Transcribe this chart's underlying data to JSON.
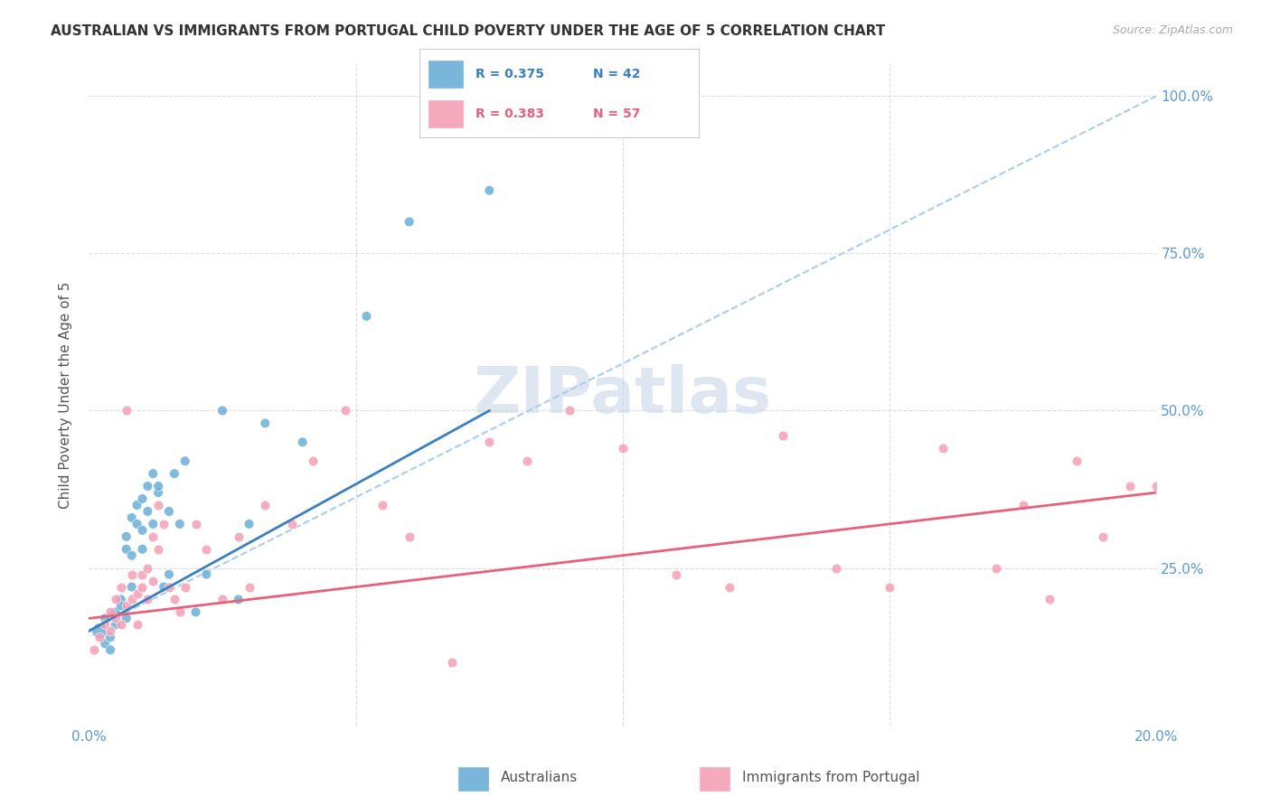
{
  "title": "AUSTRALIAN VS IMMIGRANTS FROM PORTUGAL CHILD POVERTY UNDER THE AGE OF 5 CORRELATION CHART",
  "source": "Source: ZipAtlas.com",
  "ylabel": "Child Poverty Under the Age of 5",
  "legend_r1": "R = 0.375",
  "legend_n1": "N = 42",
  "legend_r2": "R = 0.383",
  "legend_n2": "N = 57",
  "color_blue": "#6aaed6",
  "color_pink": "#f4a0b5",
  "color_blue_line": "#3a7fc1",
  "color_pink_line": "#e8607a",
  "color_dashed": "#aaccee",
  "axis_label_color": "#5b9bd5",
  "grid_color": "#dddddd",
  "watermark_color": "#c8d8e8",
  "australians_x": [
    0.002,
    0.003,
    0.003,
    0.004,
    0.004,
    0.005,
    0.005,
    0.006,
    0.006,
    0.007,
    0.007,
    0.007,
    0.008,
    0.008,
    0.008,
    0.009,
    0.009,
    0.01,
    0.01,
    0.01,
    0.011,
    0.011,
    0.012,
    0.012,
    0.013,
    0.013,
    0.014,
    0.015,
    0.015,
    0.016,
    0.017,
    0.018,
    0.02,
    0.022,
    0.025,
    0.028,
    0.03,
    0.033,
    0.04,
    0.052,
    0.06,
    0.075
  ],
  "australians_y": [
    0.15,
    0.13,
    0.17,
    0.14,
    0.12,
    0.18,
    0.16,
    0.2,
    0.19,
    0.17,
    0.28,
    0.3,
    0.22,
    0.33,
    0.27,
    0.35,
    0.32,
    0.31,
    0.36,
    0.28,
    0.34,
    0.38,
    0.32,
    0.4,
    0.37,
    0.38,
    0.22,
    0.24,
    0.34,
    0.4,
    0.32,
    0.42,
    0.18,
    0.24,
    0.5,
    0.2,
    0.32,
    0.48,
    0.45,
    0.65,
    0.8,
    0.85
  ],
  "australians_size": [
    150,
    60,
    60,
    60,
    60,
    60,
    60,
    60,
    60,
    60,
    60,
    60,
    60,
    60,
    60,
    60,
    60,
    60,
    60,
    60,
    60,
    60,
    60,
    60,
    60,
    60,
    60,
    60,
    60,
    60,
    60,
    60,
    60,
    60,
    60,
    60,
    60,
    60,
    60,
    60,
    60,
    60
  ],
  "portugal_x": [
    0.001,
    0.002,
    0.003,
    0.004,
    0.004,
    0.005,
    0.005,
    0.006,
    0.006,
    0.007,
    0.007,
    0.008,
    0.008,
    0.009,
    0.009,
    0.01,
    0.01,
    0.011,
    0.011,
    0.012,
    0.012,
    0.013,
    0.013,
    0.014,
    0.015,
    0.016,
    0.017,
    0.018,
    0.02,
    0.022,
    0.025,
    0.028,
    0.03,
    0.033,
    0.038,
    0.042,
    0.048,
    0.055,
    0.06,
    0.068,
    0.075,
    0.082,
    0.09,
    0.1,
    0.11,
    0.12,
    0.13,
    0.14,
    0.15,
    0.16,
    0.17,
    0.175,
    0.18,
    0.185,
    0.19,
    0.195,
    0.2
  ],
  "portugal_y": [
    0.12,
    0.14,
    0.16,
    0.18,
    0.15,
    0.2,
    0.17,
    0.22,
    0.16,
    0.19,
    0.5,
    0.24,
    0.2,
    0.21,
    0.16,
    0.24,
    0.22,
    0.2,
    0.25,
    0.23,
    0.3,
    0.28,
    0.35,
    0.32,
    0.22,
    0.2,
    0.18,
    0.22,
    0.32,
    0.28,
    0.2,
    0.3,
    0.22,
    0.35,
    0.32,
    0.42,
    0.5,
    0.35,
    0.3,
    0.1,
    0.45,
    0.42,
    0.5,
    0.44,
    0.24,
    0.22,
    0.46,
    0.25,
    0.22,
    0.44,
    0.25,
    0.35,
    0.2,
    0.42,
    0.3,
    0.38,
    0.38
  ],
  "xlim": [
    0.0,
    0.2
  ],
  "ylim": [
    0.0,
    1.05
  ],
  "blue_line_x": [
    0.0,
    0.075
  ],
  "blue_line_y": [
    0.15,
    0.5
  ],
  "pink_line_x": [
    0.0,
    0.2
  ],
  "pink_line_y": [
    0.17,
    0.37
  ],
  "dashed_line_x": [
    0.0,
    0.2
  ],
  "dashed_line_y": [
    0.15,
    1.0
  ]
}
